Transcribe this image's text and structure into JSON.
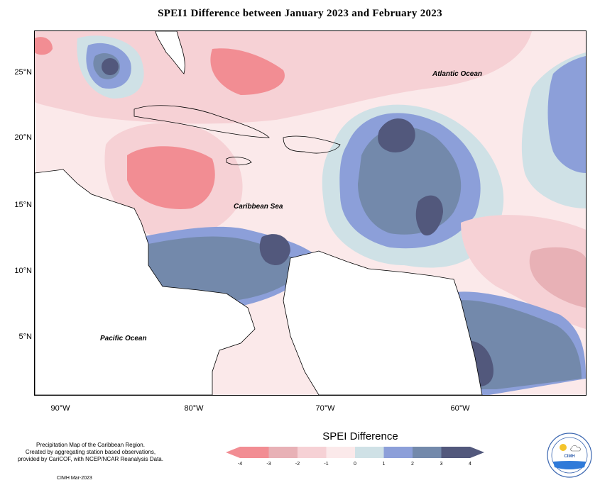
{
  "title": "SPEI1 Difference between January 2023 and February 2023",
  "map": {
    "lat_labels": [
      "25°N",
      "20°N",
      "15°N",
      "10°N",
      "5°N"
    ],
    "lon_labels": [
      "90°W",
      "80°W",
      "70°W",
      "60°W"
    ],
    "place_labels": {
      "atlantic": "Atlantic Ocean",
      "caribbean": "Caribbean Sea",
      "pacific": "Pacific Ocean"
    }
  },
  "legend": {
    "title": "SPEI Difference",
    "ticks": [
      "-4",
      "-3",
      "-2",
      "-1",
      "0",
      "1",
      "2",
      "3",
      "4"
    ],
    "colors": [
      "#f28d93",
      "#e8b1b6",
      "#f6d1d5",
      "#fbe9ea",
      "#cfe1e6",
      "#8c9fd9",
      "#7389ab",
      "#52587c"
    ]
  },
  "credit": {
    "line1": "Precipitation Map of the Caribbean Region.",
    "line2": "Created by aggregating station based observations,",
    "line3": "provided by CariCOF, with NCEP/NCAR Reanalysis Data."
  },
  "footer": "CIMH Mar-2023",
  "logo": {
    "text_top": "CARIBBEAN INSTITUTE FOR METEOROLOGY",
    "text_mid": "CIMH",
    "text_bottom": "AND HYDROLOGY"
  }
}
